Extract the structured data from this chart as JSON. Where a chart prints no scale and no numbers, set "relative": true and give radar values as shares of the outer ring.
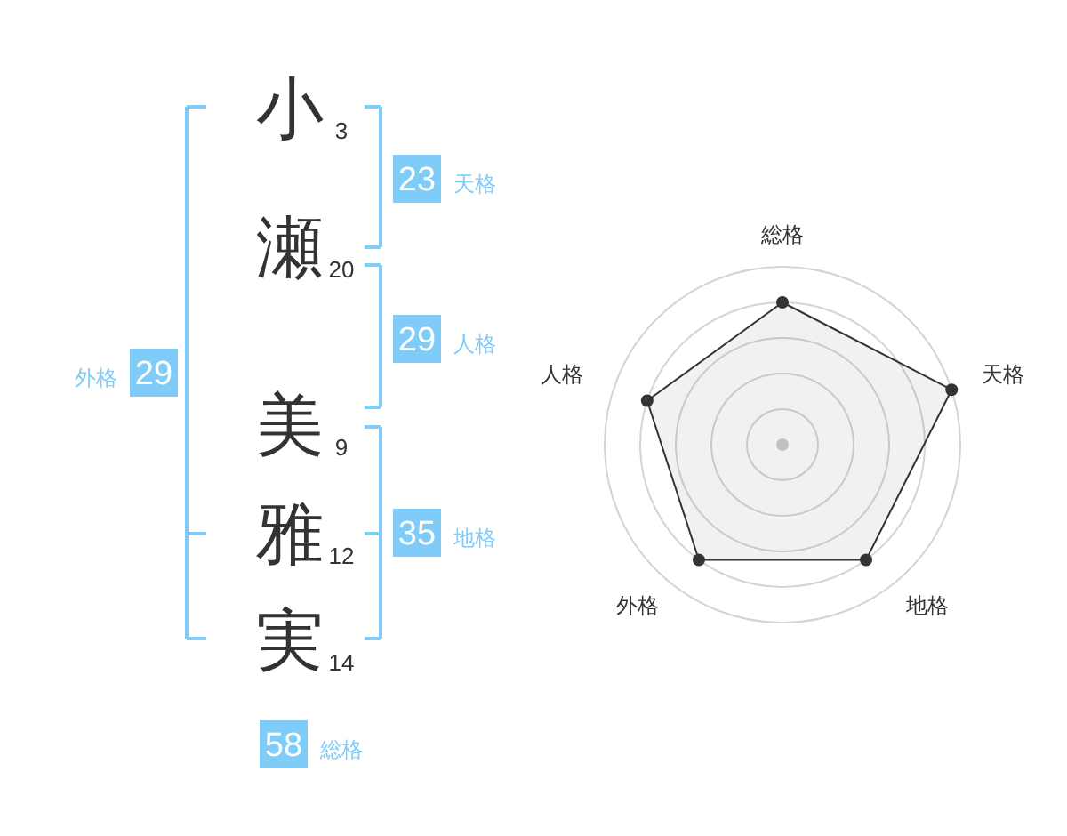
{
  "chart_data": [
    {
      "type": "other",
      "categories": [
        "小",
        "瀬",
        "美",
        "雅",
        "実"
      ],
      "values": [
        3,
        20,
        9,
        12,
        14
      ],
      "data_labels": true,
      "color": "#333333"
    },
    {
      "type": "other",
      "categories": [
        "天格",
        "人格",
        "地格",
        "外格",
        "総格"
      ],
      "values": [
        23,
        29,
        35,
        29,
        58
      ],
      "data_labels": true,
      "color": "#80ccf8"
    },
    {
      "type": "radar",
      "categories": [
        "総格",
        "天格",
        "地格",
        "外格",
        "人格"
      ],
      "relative": true,
      "grid": true,
      "marker": "circle",
      "series": [
        {
          "color": "#333333",
          "values": [
            0.8,
            1,
            0.8,
            0.8,
            0.8
          ]
        }
      ]
    }
  ]
}
